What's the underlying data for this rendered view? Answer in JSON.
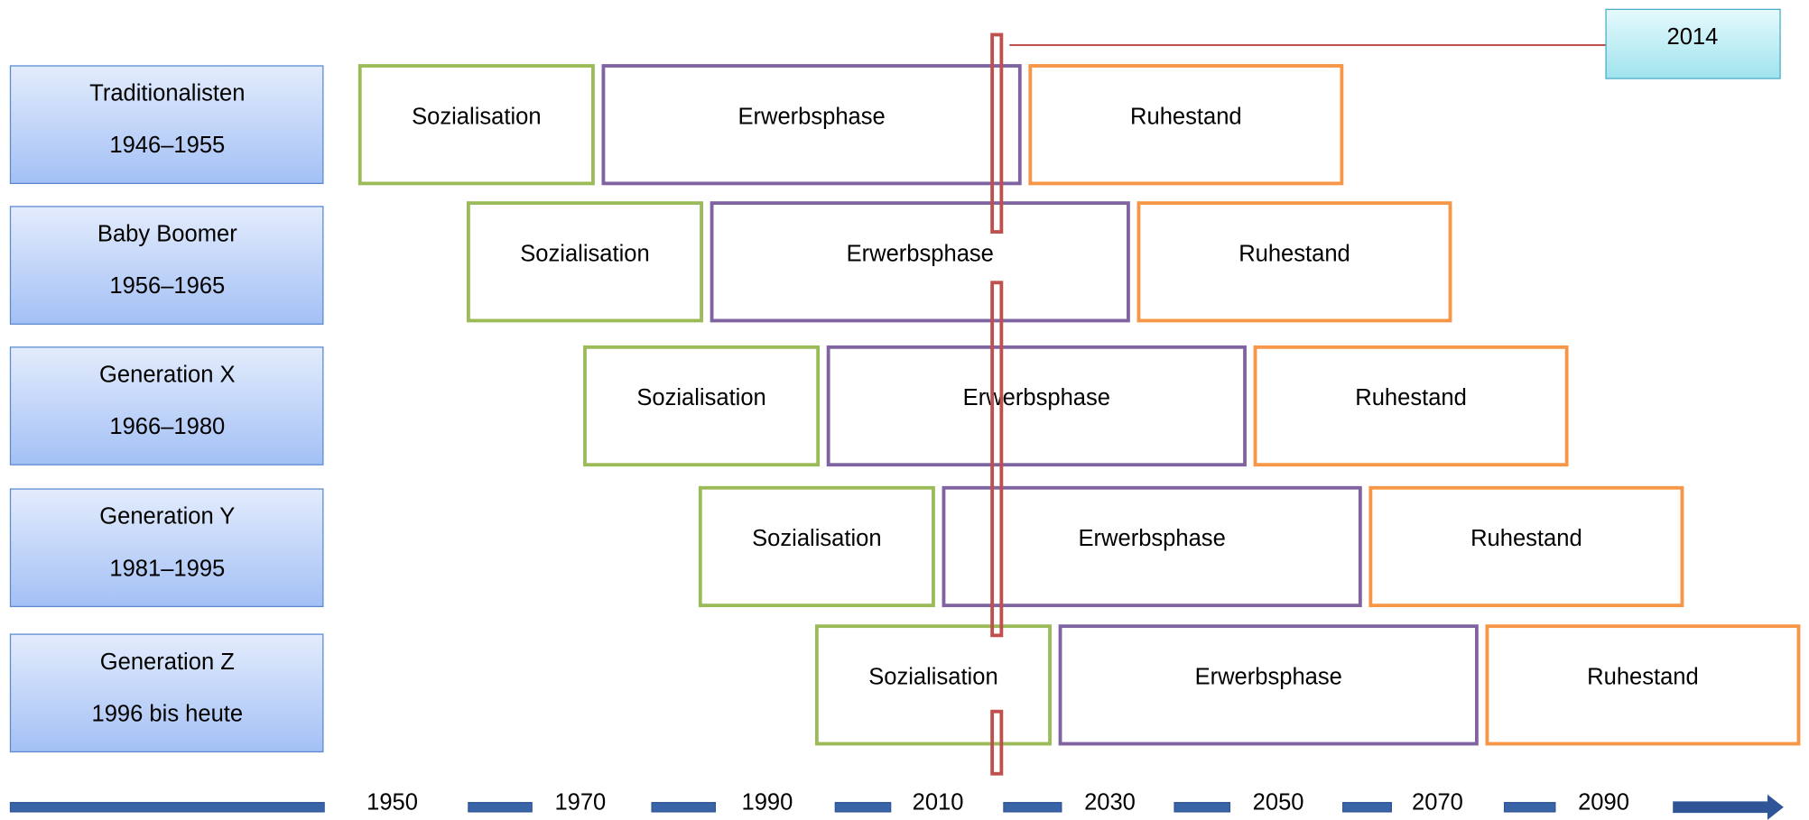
{
  "marker_year": "2014",
  "rows": [
    {
      "name": "Traditionalisten",
      "years": "1946–1955",
      "phases": [
        "Sozialisation",
        "Erwerbsphase",
        "Ruhestand"
      ]
    },
    {
      "name": "Baby Boomer",
      "years": "1956–1965",
      "phases": [
        "Sozialisation",
        "Erwerbsphase",
        "Ruhestand"
      ]
    },
    {
      "name": "Generation X",
      "years": "1966–1980",
      "phases": [
        "Sozialisation",
        "Erwerbsphase",
        "Ruhestand"
      ]
    },
    {
      "name": "Generation Y",
      "years": "1981–1995",
      "phases": [
        "Sozialisation",
        "Erwerbsphase",
        "Ruhestand"
      ]
    },
    {
      "name": "Generation Z",
      "years": "1996 bis heute",
      "phases": [
        "Sozialisation",
        "Erwerbsphase",
        "Ruhestand"
      ]
    }
  ],
  "timeline": [
    "1950",
    "1970",
    "1990",
    "2010",
    "2030",
    "2050",
    "2070",
    "2090"
  ]
}
